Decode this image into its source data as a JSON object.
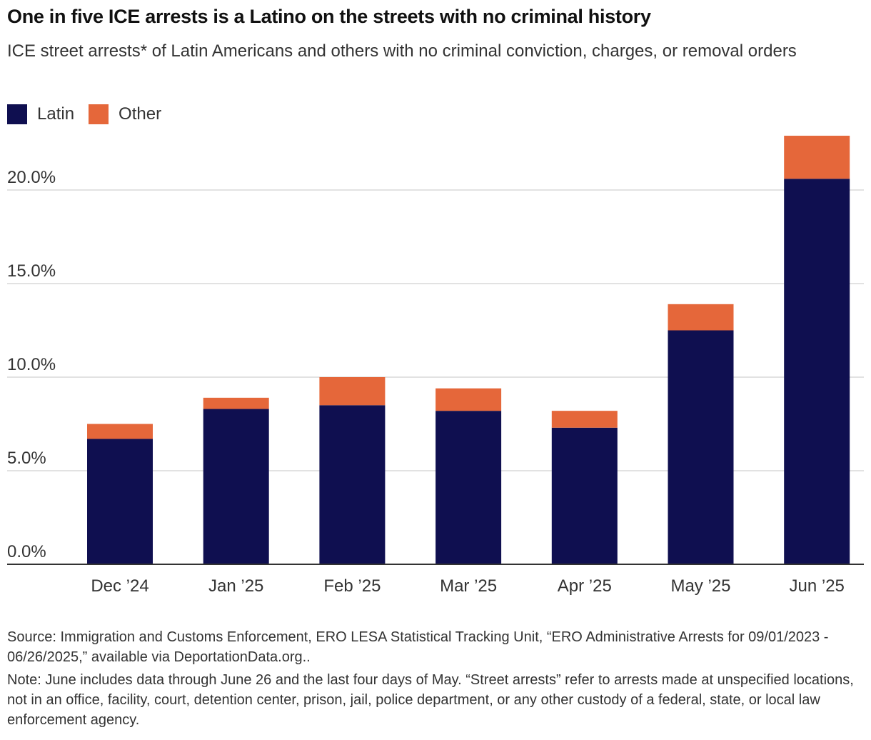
{
  "header": {
    "title": "One in five ICE arrests is a Latino on the streets with no criminal history",
    "subtitle": "ICE street arrests* of Latin Americans and others with no criminal conviction, charges, or removal orders"
  },
  "legend": [
    {
      "label": "Latin",
      "color": "#0f0f50"
    },
    {
      "label": "Other",
      "color": "#e5673a"
    }
  ],
  "footer": {
    "source": "Source: Immigration and Customs Enforcement, ERO LESA Statistical Tracking Unit, “ERO Administrative Arrests for 09/01/2023 - 06/26/2025,” available via DeportationData.org..",
    "note": "Note: June includes data through June 26 and the last four days of May. “Street arrests” refer to arrests made at unspecified locations, not in an office, facility, court, detention center, prison, jail, police department, or any other custody of a federal, state, or local law enforcement agency."
  },
  "chart_data": {
    "type": "bar",
    "stacked": true,
    "title": "One in five ICE arrests is a Latino on the streets with no criminal history",
    "subtitle": "ICE street arrests* of Latin Americans and others with no criminal conviction, charges, or removal orders",
    "xlabel": "",
    "ylabel": "",
    "categories": [
      "Dec ’24",
      "Jan ’25",
      "Feb ’25",
      "Mar ’25",
      "Apr ’25",
      "May ’25",
      "Jun ’25"
    ],
    "series": [
      {
        "name": "Latin",
        "color": "#0f0f50",
        "values": [
          6.7,
          8.3,
          8.5,
          8.2,
          7.3,
          12.5,
          20.6
        ]
      },
      {
        "name": "Other",
        "color": "#e5673a",
        "values": [
          0.8,
          0.6,
          1.5,
          1.2,
          0.9,
          1.4,
          2.3
        ]
      }
    ],
    "ylim": [
      0,
      23
    ],
    "yticks": [
      0,
      5,
      10,
      15,
      20
    ],
    "ytick_labels": [
      "0.0%",
      "5.0%",
      "10.0%",
      "15.0%",
      "20.0%"
    ],
    "grid": true,
    "legend_position": "top-left"
  }
}
